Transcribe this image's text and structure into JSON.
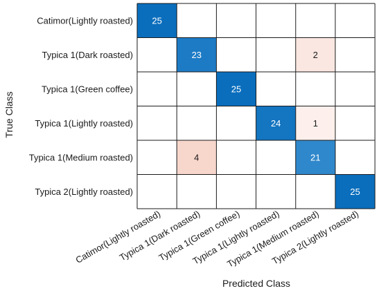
{
  "chart_data": {
    "type": "heatmap",
    "title": "",
    "xlabel": "Predicted Class",
    "ylabel": "True Class",
    "classes": [
      "Catimor(Lightly roasted)",
      "Typica 1(Dark roasted)",
      "Typica 1(Green coffee)",
      "Typica 1(Lightly roasted)",
      "Typica 1(Medium roasted)",
      "Typica 2(Lightly roasted)"
    ],
    "matrix": [
      [
        25,
        0,
        0,
        0,
        0,
        0
      ],
      [
        0,
        23,
        0,
        0,
        2,
        0
      ],
      [
        0,
        0,
        25,
        0,
        0,
        0
      ],
      [
        0,
        0,
        0,
        24,
        1,
        0
      ],
      [
        0,
        4,
        0,
        0,
        21,
        0
      ],
      [
        0,
        0,
        0,
        0,
        0,
        25
      ]
    ],
    "colors": {
      "correct_strong": "#0a6ebd",
      "correct_mid": "#3a8fd0",
      "error_low": "#fdf0ec",
      "error_high": "#f7d6cc",
      "grid": "#1a1a1a"
    }
  }
}
